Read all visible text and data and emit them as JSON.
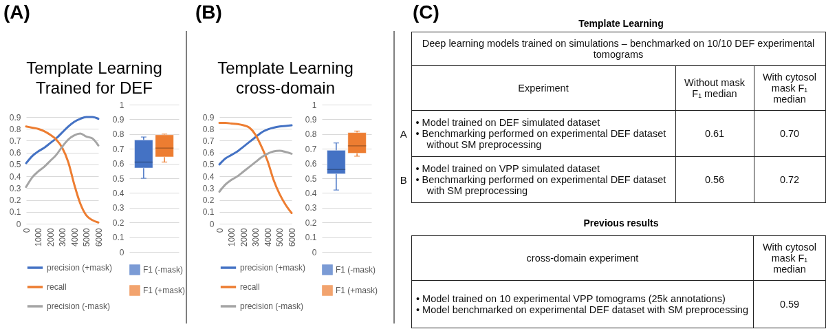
{
  "chart_data": [
    {
      "type": "line",
      "title": "Template Learning Trained for DEF",
      "annotations": [
        "(A)"
      ],
      "x": [
        0,
        500,
        1000,
        1500,
        2000,
        2500,
        3000,
        3500,
        4000,
        4500,
        5000,
        5500,
        6000
      ],
      "series": [
        {
          "name": "precision (+mask)",
          "color": "#4472c4",
          "values": [
            0.51,
            0.57,
            0.61,
            0.64,
            0.68,
            0.72,
            0.77,
            0.82,
            0.86,
            0.885,
            0.9,
            0.9,
            0.885
          ]
        },
        {
          "name": "recall",
          "color": "#ed7d31",
          "values": [
            0.82,
            0.81,
            0.8,
            0.78,
            0.75,
            0.71,
            0.64,
            0.52,
            0.33,
            0.17,
            0.07,
            0.03,
            0.01
          ]
        },
        {
          "name": "precision (-mask)",
          "color": "#a5a5a5",
          "values": [
            0.31,
            0.39,
            0.44,
            0.48,
            0.53,
            0.58,
            0.65,
            0.71,
            0.745,
            0.76,
            0.735,
            0.72,
            0.66
          ]
        }
      ],
      "xlim": [
        0,
        6000
      ],
      "xticks": [
        0,
        1000,
        2000,
        3000,
        4000,
        5000,
        6000
      ],
      "ylim": [
        0,
        0.9
      ],
      "yticks": [
        0,
        0.1,
        0.2,
        0.3,
        0.4,
        0.5,
        0.6,
        0.7,
        0.8,
        0.9
      ],
      "grid": "y",
      "legend": "bottom"
    },
    {
      "type": "box",
      "categories": [
        null
      ],
      "series": [
        {
          "name": "F1 (-mask)",
          "color": "#4472c4",
          "boxes": [
            {
              "low": 0.5,
              "q1": 0.57,
              "median": 0.61,
              "q3": 0.76,
              "high": 0.78
            }
          ]
        },
        {
          "name": "F1 (+mask)",
          "color": "#ed7d31",
          "boxes": [
            {
              "low": 0.61,
              "q1": 0.645,
              "median": 0.705,
              "q3": 0.795,
              "high": 0.8
            }
          ]
        }
      ],
      "ylim": [
        0,
        1
      ],
      "yticks": [
        0,
        0.1,
        0.2,
        0.3,
        0.4,
        0.5,
        0.6,
        0.7,
        0.8,
        0.9,
        1
      ],
      "grid": "y",
      "legend": "bottom"
    },
    {
      "type": "line",
      "title": "Template Learning cross-domain",
      "annotations": [
        "(B)"
      ],
      "x": [
        0,
        500,
        1000,
        1500,
        2000,
        2500,
        3000,
        3500,
        4000,
        4500,
        5000,
        5500,
        6000
      ],
      "series": [
        {
          "name": "precision (+mask)",
          "color": "#4472c4",
          "values": [
            0.5,
            0.55,
            0.58,
            0.61,
            0.65,
            0.69,
            0.73,
            0.77,
            0.795,
            0.81,
            0.82,
            0.825,
            0.83
          ]
        },
        {
          "name": "recall",
          "color": "#ed7d31",
          "values": [
            0.85,
            0.85,
            0.845,
            0.84,
            0.83,
            0.81,
            0.75,
            0.65,
            0.53,
            0.37,
            0.25,
            0.16,
            0.09
          ]
        },
        {
          "name": "precision (-mask)",
          "color": "#a5a5a5",
          "values": [
            0.27,
            0.33,
            0.37,
            0.4,
            0.44,
            0.48,
            0.52,
            0.56,
            0.59,
            0.61,
            0.615,
            0.605,
            0.59
          ]
        }
      ],
      "xlim": [
        0,
        6000
      ],
      "xticks": [
        0,
        1000,
        2000,
        3000,
        4000,
        5000,
        6000
      ],
      "ylim": [
        0,
        0.9
      ],
      "yticks": [
        0,
        0.1,
        0.2,
        0.3,
        0.4,
        0.5,
        0.6,
        0.7,
        0.8,
        0.9
      ],
      "grid": "y",
      "legend": "bottom"
    },
    {
      "type": "box",
      "categories": [
        null
      ],
      "series": [
        {
          "name": "F1 (-mask)",
          "color": "#4472c4",
          "boxes": [
            {
              "low": 0.42,
              "q1": 0.53,
              "median": 0.56,
              "q3": 0.69,
              "high": 0.74
            }
          ]
        },
        {
          "name": "F1 (+mask)",
          "color": "#ed7d31",
          "boxes": [
            {
              "low": 0.65,
              "q1": 0.67,
              "median": 0.72,
              "q3": 0.81,
              "high": 0.82
            }
          ]
        }
      ],
      "ylim": [
        0,
        1
      ],
      "yticks": [
        0,
        0.1,
        0.2,
        0.3,
        0.4,
        0.5,
        0.6,
        0.7,
        0.8,
        0.9,
        1
      ],
      "grid": "y",
      "legend": "bottom"
    },
    {
      "type": "other",
      "title": "Template Learning",
      "annotations": [
        "(C)",
        "Deep learning models trained on simulations  – benchmarked on 10/10 DEF experimental tomograms",
        "Experiment",
        "Without mask F₁ median",
        "With cytosol mask F₁ median",
        "A",
        "• Model trained on DEF simulated dataset",
        "• Benchmarking performed on experimental DEF dataset without SM preprocessing",
        "0.61",
        "0.70",
        "B",
        "• Model trained on VPP simulated dataset",
        "• Benchmarking performed on experimental DEF dataset with SM preprocessing",
        "0.56",
        "0.72"
      ]
    },
    {
      "type": "other",
      "title": "Previous results",
      "annotations": [
        "cross-domain experiment",
        "With cytosol mask F₁ median",
        "• Model trained on 10 experimental VPP tomograms (25k annotations)",
        "• Model benchmarked on experimental DEF dataset with SM preprocessing",
        "0.59"
      ]
    }
  ]
}
